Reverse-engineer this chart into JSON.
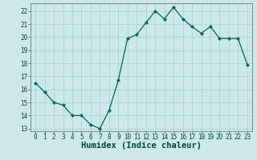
{
  "x": [
    0,
    1,
    2,
    3,
    4,
    5,
    6,
    7,
    8,
    9,
    10,
    11,
    12,
    13,
    14,
    15,
    16,
    17,
    18,
    19,
    20,
    21,
    22,
    23
  ],
  "y": [
    16.5,
    15.8,
    15.0,
    14.8,
    14.0,
    14.0,
    13.3,
    13.0,
    14.4,
    16.7,
    19.9,
    20.2,
    21.1,
    22.0,
    21.4,
    22.3,
    21.4,
    20.8,
    20.3,
    20.8,
    19.9,
    19.9,
    19.9,
    17.9
  ],
  "line_color": "#006666",
  "marker": "D",
  "marker_size": 2,
  "bg_color": "#cce8e8",
  "grid_color": "#aad4d4",
  "xlabel": "Humidex (Indice chaleur)",
  "ylim": [
    12.8,
    22.6
  ],
  "xlim": [
    -0.5,
    23.5
  ],
  "yticks": [
    13,
    14,
    15,
    16,
    17,
    18,
    19,
    20,
    21,
    22
  ],
  "xticks": [
    0,
    1,
    2,
    3,
    4,
    5,
    6,
    7,
    8,
    9,
    10,
    11,
    12,
    13,
    14,
    15,
    16,
    17,
    18,
    19,
    20,
    21,
    22,
    23
  ],
  "tick_label_size": 5.5,
  "xlabel_size": 7.5,
  "xlabel_bold": true
}
